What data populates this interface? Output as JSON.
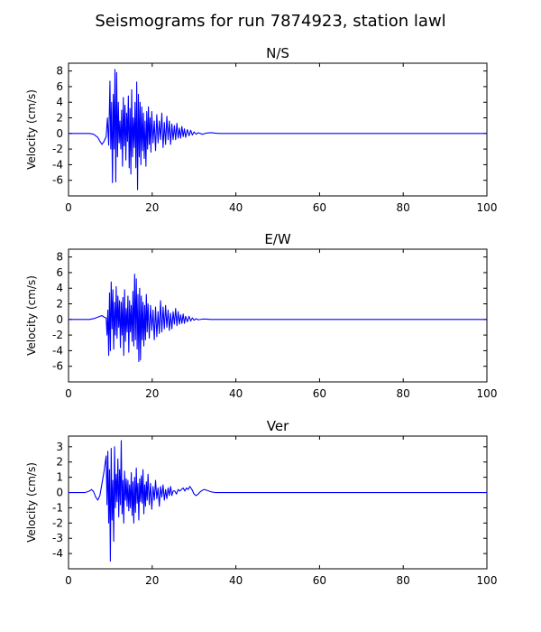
{
  "figure_title": "Seismograms for run 7874923, station lawl",
  "colors": {
    "trace": "#0000ff",
    "axes": "#000000",
    "background": "#ffffff"
  },
  "chart_data": [
    {
      "type": "line",
      "title": "N/S",
      "xlabel": "",
      "ylabel": "Velocity (cm/s)",
      "xlim": [
        0,
        100
      ],
      "ylim": [
        -8,
        9
      ],
      "xticks": [
        0,
        20,
        40,
        60,
        80,
        100
      ],
      "yticks": [
        -6,
        -4,
        -2,
        0,
        2,
        4,
        6,
        8
      ],
      "grid": false,
      "series": [
        {
          "x": [
            0,
            5,
            6,
            7,
            7.5,
            8,
            8.5,
            9,
            9.3,
            9.6,
            9.9,
            10.1,
            10.3,
            10.5,
            10.7,
            10.9,
            11.1,
            11.3,
            11.5,
            11.7,
            11.9,
            12.1,
            12.3,
            12.5,
            12.7,
            12.9,
            13.1,
            13.3,
            13.5,
            13.7,
            13.9,
            14.1,
            14.3,
            14.5,
            14.7,
            14.9,
            15.1,
            15.3,
            15.5,
            15.7,
            15.9,
            16.1,
            16.3,
            16.5,
            16.7,
            16.9,
            17.1,
            17.3,
            17.5,
            17.7,
            17.9,
            18.1,
            18.3,
            18.5,
            18.7,
            18.9,
            19.1,
            19.3,
            19.5,
            19.7,
            19.9,
            20.2,
            20.5,
            20.8,
            21.1,
            21.4,
            21.7,
            22.0,
            22.3,
            22.6,
            22.9,
            23.2,
            23.5,
            23.8,
            24.1,
            24.4,
            24.7,
            25.0,
            25.3,
            25.6,
            25.9,
            26.2,
            26.5,
            26.8,
            27.1,
            27.4,
            27.7,
            28.0,
            28.4,
            28.8,
            29.2,
            29.6,
            30.0,
            30.5,
            31.0,
            32.0,
            33.0,
            34.0,
            35.0,
            36.0,
            40.0,
            50.0,
            60.0,
            70.0,
            80.0,
            90.0,
            100.0
          ],
          "y": [
            0,
            0,
            -0.1,
            -0.5,
            -1.0,
            -1.4,
            -1.0,
            -0.4,
            2.0,
            -1.5,
            6.7,
            -2.0,
            4.0,
            -6.3,
            5.0,
            -2.0,
            8.2,
            -6.2,
            7.8,
            -3.0,
            4.0,
            -1.2,
            1.6,
            -2.0,
            3.0,
            -4.2,
            4.6,
            -1.6,
            3.6,
            -3.4,
            2.6,
            -1.0,
            4.8,
            -4.4,
            3.2,
            -5.2,
            5.6,
            -3.0,
            2.0,
            -1.8,
            4.0,
            -4.4,
            6.6,
            -7.2,
            5.0,
            -3.0,
            4.0,
            -4.0,
            3.4,
            -2.2,
            2.6,
            -3.2,
            1.6,
            -4.2,
            2.8,
            -2.0,
            3.4,
            -1.4,
            2.0,
            -2.4,
            2.8,
            -1.2,
            1.6,
            -2.2,
            2.4,
            -1.2,
            1.6,
            -0.8,
            2.6,
            -1.8,
            1.4,
            -1.4,
            2.2,
            -0.8,
            1.6,
            -1.4,
            1.2,
            -0.8,
            1.0,
            -0.8,
            1.3,
            -0.6,
            0.7,
            -0.6,
            0.9,
            -0.4,
            0.6,
            -0.5,
            0.5,
            -0.3,
            0.4,
            -0.2,
            0.2,
            -0.1,
            0.1,
            -0.1,
            0.05,
            0.1,
            0.05,
            0.0,
            0.0,
            0.0,
            0.0,
            0.0,
            0.0,
            0.0,
            0.0
          ]
        }
      ]
    },
    {
      "type": "line",
      "title": "E/W",
      "xlabel": "",
      "ylabel": "Velocity (cm/s)",
      "xlim": [
        0,
        100
      ],
      "ylim": [
        -8,
        9
      ],
      "xticks": [
        0,
        20,
        40,
        60,
        80,
        100
      ],
      "yticks": [
        -6,
        -4,
        -2,
        0,
        2,
        4,
        6,
        8
      ],
      "grid": false,
      "series": [
        {
          "x": [
            0,
            5,
            6,
            7,
            7.5,
            8,
            8.5,
            9,
            9.2,
            9.4,
            9.6,
            9.8,
            10.0,
            10.2,
            10.4,
            10.6,
            10.8,
            11.0,
            11.2,
            11.4,
            11.6,
            11.8,
            12.0,
            12.2,
            12.4,
            12.6,
            12.8,
            13.0,
            13.2,
            13.4,
            13.6,
            13.8,
            14.0,
            14.2,
            14.4,
            14.6,
            14.8,
            15.0,
            15.2,
            15.4,
            15.6,
            15.8,
            16.0,
            16.2,
            16.4,
            16.6,
            16.8,
            17.0,
            17.2,
            17.4,
            17.6,
            17.8,
            18.0,
            18.2,
            18.4,
            18.6,
            18.8,
            19.0,
            19.3,
            19.6,
            19.9,
            20.2,
            20.5,
            20.8,
            21.1,
            21.4,
            21.7,
            22.0,
            22.3,
            22.6,
            22.9,
            23.2,
            23.5,
            23.8,
            24.1,
            24.4,
            24.7,
            25.0,
            25.3,
            25.6,
            25.9,
            26.2,
            26.5,
            26.8,
            27.1,
            27.4,
            27.7,
            28.0,
            28.4,
            28.8,
            29.2,
            29.6,
            30.0,
            30.5,
            31.0,
            32.0,
            33.0,
            34.0,
            35.0,
            36.0,
            40.0,
            50.0,
            60.0,
            70.0,
            80.0,
            90.0,
            100.0
          ],
          "y": [
            0,
            0,
            0.1,
            0.3,
            0.4,
            0.5,
            0.3,
            0.2,
            -2.0,
            1.2,
            -4.6,
            3.4,
            -4.0,
            4.8,
            -1.2,
            3.8,
            -3.8,
            2.2,
            -2.0,
            4.2,
            -2.4,
            3.0,
            -1.0,
            2.4,
            -3.6,
            2.2,
            -2.0,
            2.8,
            -4.6,
            3.8,
            -2.8,
            1.4,
            -1.6,
            3.0,
            -4.2,
            2.4,
            -1.6,
            1.8,
            -2.8,
            3.6,
            -3.4,
            5.8,
            -2.6,
            5.2,
            -3.8,
            3.2,
            -5.4,
            4.0,
            -5.2,
            3.0,
            -2.6,
            2.2,
            -3.4,
            1.8,
            -2.6,
            3.2,
            -1.6,
            2.0,
            -2.4,
            1.8,
            -1.4,
            1.2,
            -2.6,
            1.6,
            -2.2,
            1.0,
            -1.8,
            2.4,
            -1.6,
            1.6,
            -1.2,
            1.8,
            -1.0,
            1.2,
            -1.4,
            0.8,
            -1.2,
            1.0,
            -0.6,
            1.4,
            -0.8,
            1.0,
            -0.6,
            0.6,
            -0.5,
            0.7,
            -0.5,
            0.4,
            -0.3,
            0.4,
            -0.2,
            0.2,
            -0.1,
            0.1,
            -0.05,
            0.05,
            0.05,
            0.0,
            0.0,
            0.0,
            0.0,
            0.0,
            0.0,
            0.0,
            0.0,
            0.0,
            0.0
          ]
        }
      ]
    },
    {
      "type": "line",
      "title": "Ver",
      "xlabel": "",
      "ylabel": "Velocity (cm/s)",
      "xlim": [
        0,
        100
      ],
      "ylim": [
        -5,
        3.7
      ],
      "xticks": [
        0,
        20,
        40,
        60,
        80,
        100
      ],
      "yticks": [
        -4,
        -3,
        -2,
        -1,
        0,
        1,
        2,
        3
      ],
      "grid": false,
      "series": [
        {
          "x": [
            0,
            4,
            5,
            5.5,
            6,
            6.5,
            7,
            7.5,
            8,
            8.5,
            9.0,
            9.2,
            9.4,
            9.6,
            9.8,
            10.0,
            10.2,
            10.4,
            10.6,
            10.8,
            11.0,
            11.2,
            11.4,
            11.6,
            11.8,
            12.0,
            12.2,
            12.4,
            12.6,
            12.8,
            13.0,
            13.2,
            13.4,
            13.6,
            13.8,
            14.0,
            14.2,
            14.4,
            14.6,
            14.8,
            15.0,
            15.2,
            15.4,
            15.6,
            15.8,
            16.0,
            16.2,
            16.4,
            16.6,
            16.8,
            17.0,
            17.2,
            17.4,
            17.6,
            17.8,
            18.0,
            18.2,
            18.4,
            18.6,
            18.8,
            19.0,
            19.3,
            19.6,
            19.9,
            20.2,
            20.5,
            20.8,
            21.1,
            21.4,
            21.7,
            22.0,
            22.3,
            22.6,
            22.9,
            23.2,
            23.5,
            23.8,
            24.1,
            24.4,
            24.7,
            25.0,
            25.4,
            25.8,
            26.2,
            26.6,
            27.0,
            27.4,
            27.8,
            28.2,
            28.6,
            29.0,
            29.5,
            30.0,
            30.5,
            31.0,
            31.5,
            32.0,
            32.5,
            33.0,
            34.0,
            35.0,
            36.0,
            38.0,
            40.0,
            50.0,
            60.0,
            70.0,
            80.0,
            90.0,
            100.0
          ],
          "y": [
            0,
            0,
            0.1,
            0.2,
            0.05,
            -0.3,
            -0.5,
            -0.2,
            0.6,
            1.4,
            2.4,
            -0.8,
            2.7,
            -2.0,
            1.5,
            -4.5,
            2.9,
            -1.8,
            0.8,
            -3.2,
            3.0,
            -1.0,
            1.2,
            -0.6,
            2.2,
            -1.6,
            1.5,
            -0.8,
            3.4,
            -1.4,
            0.8,
            -2.0,
            1.4,
            -0.5,
            0.9,
            -0.9,
            0.8,
            -1.2,
            0.5,
            -1.0,
            1.3,
            -1.5,
            0.7,
            -2.0,
            1.0,
            -1.3,
            1.6,
            -0.7,
            0.6,
            -1.8,
            0.9,
            -0.6,
            1.1,
            -0.7,
            1.5,
            -1.4,
            0.5,
            -0.9,
            0.7,
            -0.5,
            1.2,
            -0.8,
            0.6,
            -1.1,
            0.4,
            -0.5,
            0.8,
            -0.4,
            0.3,
            -0.9,
            0.4,
            -0.3,
            0.5,
            -0.5,
            0.2,
            -0.4,
            0.3,
            -0.2,
            0.4,
            -0.2,
            0.1,
            0.1,
            -0.1,
            0.2,
            0.1,
            0.2,
            0.3,
            0.1,
            0.3,
            0.2,
            0.4,
            0.2,
            -0.1,
            -0.2,
            -0.1,
            0.05,
            0.15,
            0.2,
            0.15,
            0.05,
            0.0,
            0.0,
            0.0,
            0.0,
            0.0,
            0.0,
            0.0,
            0.0,
            0.0,
            0.0
          ]
        }
      ]
    }
  ]
}
